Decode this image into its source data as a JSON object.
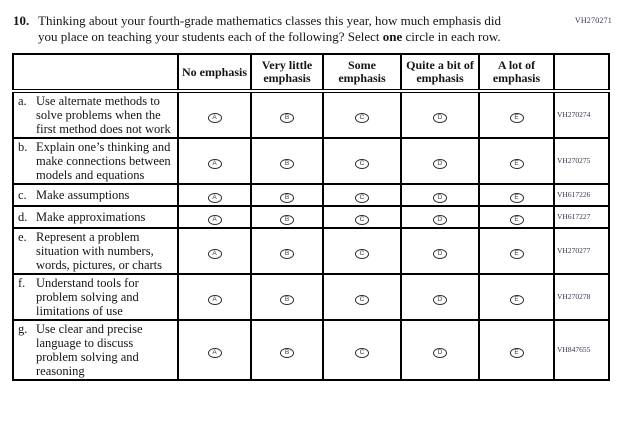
{
  "page": {
    "corner_code": "VH270271"
  },
  "question": {
    "number": "10.",
    "text_before_bold": "Thinking about your fourth-grade mathematics classes this year, how much emphasis did you place on teaching your students each of the following? Select ",
    "bold_word": "one",
    "text_after_bold": " circle in each row."
  },
  "table": {
    "column_headers": [
      "No emphasis",
      "Very little emphasis",
      "Some emphasis",
      "Quite a bit of emphasis",
      "A lot of emphasis"
    ],
    "options": [
      "A",
      "B",
      "C",
      "D",
      "E"
    ],
    "rows": [
      {
        "letter": "a.",
        "text": "Use alternate methods to solve problems when the first method does not work",
        "code": "VH270274"
      },
      {
        "letter": "b.",
        "text": "Explain one’s thinking and make connections between models and equations",
        "code": "VH270275"
      },
      {
        "letter": "c.",
        "text": "Make assumptions",
        "code": "VH617226"
      },
      {
        "letter": "d.",
        "text": "Make approximations",
        "code": "VH617227"
      },
      {
        "letter": "e.",
        "text": "Represent a problem situation with numbers, words, pictures, or charts",
        "code": "VH270277"
      },
      {
        "letter": "f.",
        "text": "Understand tools for problem solving and limitations of use",
        "code": "VH270278"
      },
      {
        "letter": "g.",
        "text": "Use clear and precise language to discuss problem solving and reasoning",
        "code": "VH847655"
      }
    ]
  }
}
